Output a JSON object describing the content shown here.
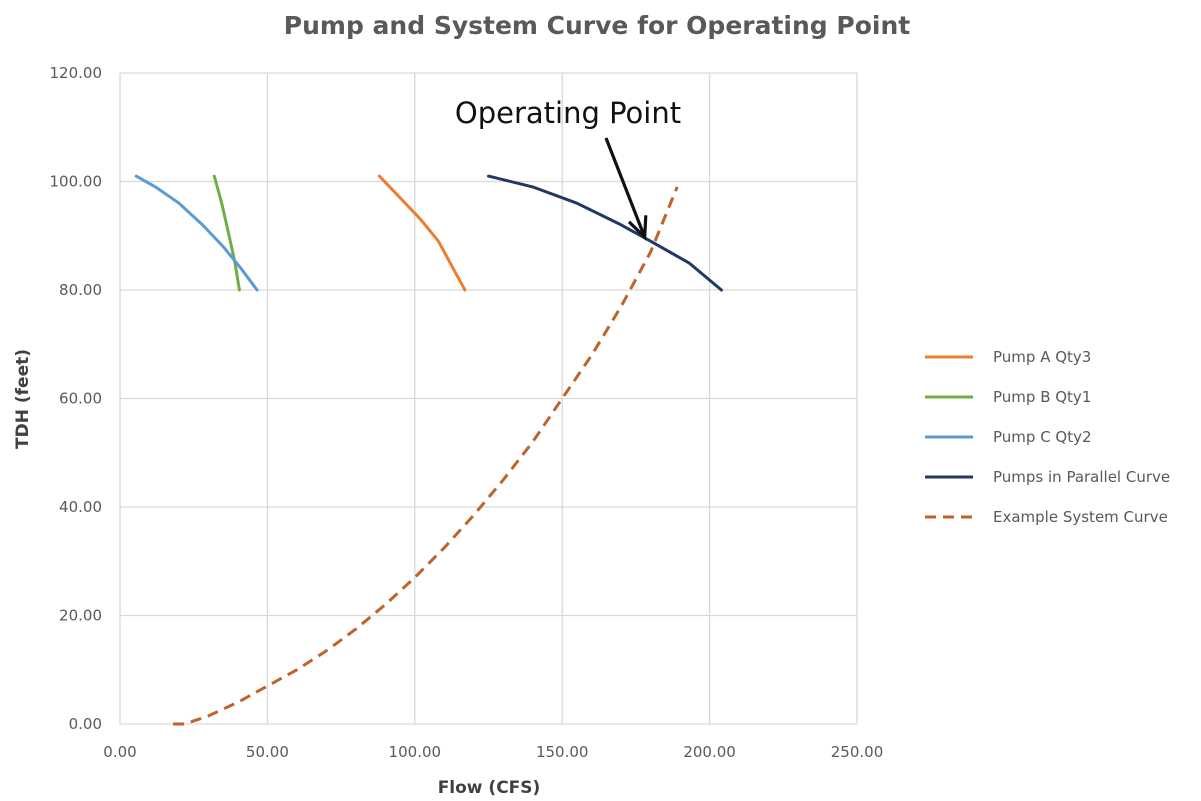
{
  "chart_data": {
    "type": "line",
    "title": "Pump and System Curve for Operating Point",
    "xlabel": "Flow (CFS)",
    "ylabel": "TDH (feet)",
    "xlim": [
      0,
      250
    ],
    "ylim": [
      0,
      120
    ],
    "x_ticks": [
      "0.00",
      "50.00",
      "100.00",
      "150.00",
      "200.00",
      "250.00"
    ],
    "y_ticks": [
      "0.00",
      "20.00",
      "40.00",
      "60.00",
      "80.00",
      "100.00",
      "120.00"
    ],
    "grid": true,
    "legend_position": "right",
    "series": [
      {
        "name": "Pump A Qty3",
        "color": "#ED7D31",
        "dash": false,
        "x": [
          88,
          95,
          102,
          108,
          113,
          117
        ],
        "y": [
          101,
          97,
          93,
          89,
          84,
          80
        ]
      },
      {
        "name": "Pump B Qty1",
        "color": "#70AD47",
        "dash": false,
        "x": [
          32,
          34.5,
          37,
          39,
          40.5
        ],
        "y": [
          101,
          96,
          90,
          85,
          80
        ]
      },
      {
        "name": "Pump C Qty2",
        "color": "#5B9BD5",
        "dash": false,
        "x": [
          5.5,
          12,
          20,
          28,
          35,
          41,
          46.5
        ],
        "y": [
          101,
          99,
          96,
          92,
          88,
          84,
          80
        ]
      },
      {
        "name": "Pumps in Parallel Curve",
        "color": "#203864",
        "dash": false,
        "x": [
          125,
          140,
          155,
          170,
          180,
          193,
          204
        ],
        "y": [
          101,
          99,
          96,
          92,
          89,
          85,
          80
        ]
      },
      {
        "name": "Example System Curve",
        "color": "#C0622B",
        "dash": true,
        "x": [
          18,
          22,
          30,
          40,
          50,
          60,
          70,
          80,
          90,
          100,
          110,
          120,
          130,
          140,
          150,
          160,
          170,
          180,
          189
        ],
        "y": [
          0,
          0,
          1.5,
          4,
          7,
          10,
          13.5,
          17.5,
          22,
          27,
          32.5,
          38.5,
          45,
          52,
          60,
          68,
          77,
          87,
          99
        ]
      }
    ],
    "annotations": [
      {
        "text": "Operating Point",
        "x": 179,
        "y": 89
      }
    ]
  }
}
